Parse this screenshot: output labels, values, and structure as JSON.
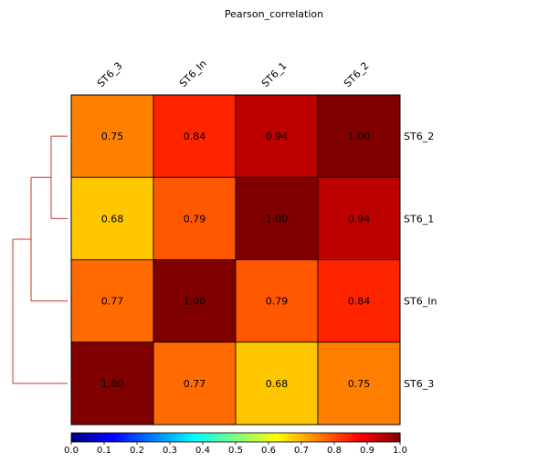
{
  "chart_data": {
    "type": "heatmap",
    "title": "Pearson_correlation",
    "column_labels": [
      "ST6_3",
      "ST6_In",
      "ST6_1",
      "ST6_2"
    ],
    "row_labels": [
      "ST6_2",
      "ST6_1",
      "ST6_In",
      "ST6_3"
    ],
    "values": [
      [
        0.75,
        0.84,
        0.94,
        1.0
      ],
      [
        0.68,
        0.79,
        1.0,
        0.94
      ],
      [
        0.77,
        1.0,
        0.79,
        0.84
      ],
      [
        1.0,
        0.77,
        0.68,
        0.75
      ]
    ],
    "colorbar": {
      "min": 0.0,
      "max": 1.0,
      "ticks": [
        "0.0",
        "0.1",
        "0.2",
        "0.3",
        "0.4",
        "0.5",
        "0.6",
        "0.7",
        "0.8",
        "0.9",
        "1.0"
      ],
      "colormap": "jet"
    },
    "dendrogram": {
      "side": "left",
      "color": "#c0392b"
    }
  }
}
